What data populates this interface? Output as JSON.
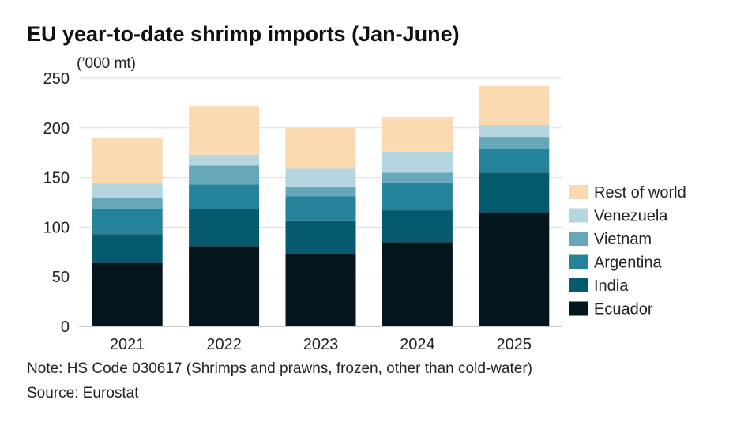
{
  "chart_data": {
    "type": "bar",
    "stacked": true,
    "title": "EU year-to-date shrimp imports (Jan-June)",
    "unit_label": "(’000 mt)",
    "categories": [
      "2021",
      "2022",
      "2023",
      "2024",
      "2025"
    ],
    "series": [
      {
        "name": "Ecuador",
        "color": "#03161d",
        "values": [
          64,
          81,
          73,
          85,
          115
        ]
      },
      {
        "name": "India",
        "color": "#065a6e",
        "values": [
          29,
          37,
          33,
          32,
          40
        ]
      },
      {
        "name": "Argentina",
        "color": "#24839a",
        "values": [
          25,
          25,
          25,
          28,
          24
        ]
      },
      {
        "name": "Vietnam",
        "color": "#66a8ba",
        "values": [
          12,
          19,
          10,
          10,
          12
        ]
      },
      {
        "name": "Venezuela",
        "color": "#b5d6de",
        "values": [
          14,
          11,
          18,
          21,
          12
        ]
      },
      {
        "name": "Rest of world",
        "color": "#fbd9b1",
        "values": [
          46,
          49,
          41,
          35,
          39
        ]
      }
    ],
    "ylim": [
      0,
      250
    ],
    "yticks": [
      0,
      50,
      100,
      150,
      200,
      250
    ],
    "grid": true,
    "legend_position": "right",
    "note": "Note: HS Code 030617 (Shrimps and prawns, frozen, other than cold-water)",
    "source": "Source: Eurostat"
  }
}
